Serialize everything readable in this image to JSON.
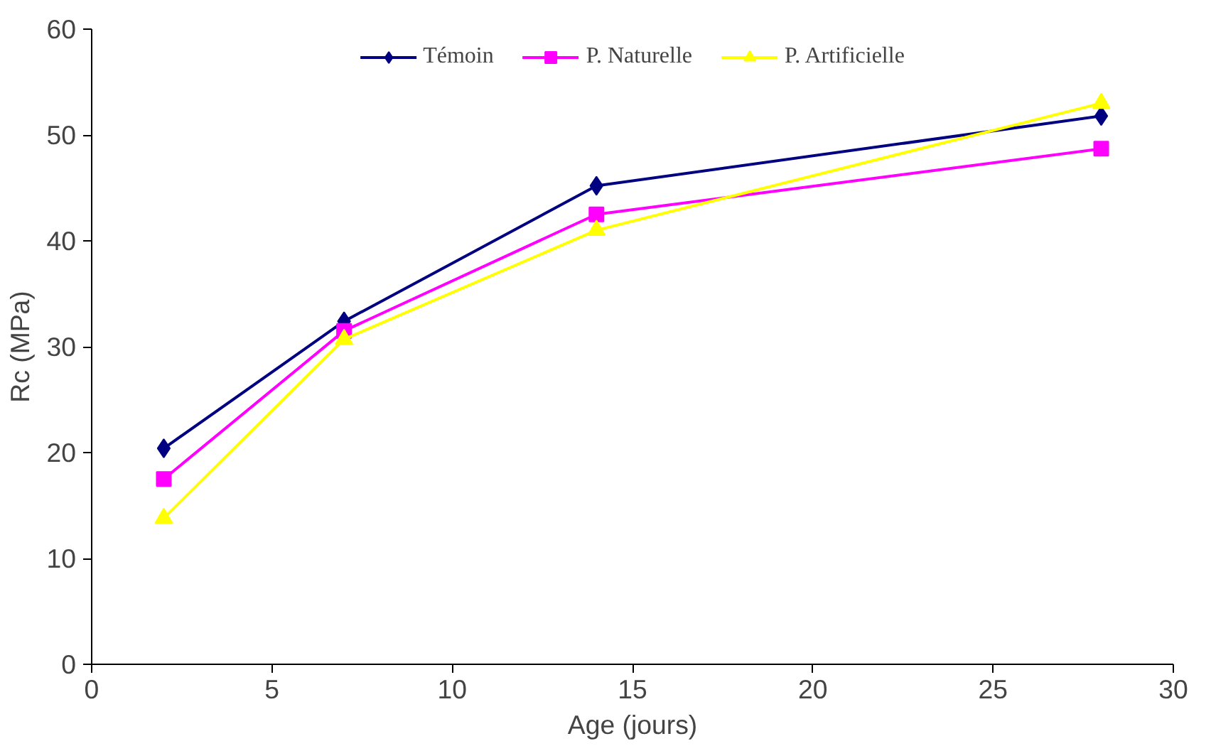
{
  "chart_data": {
    "type": "line",
    "xlabel": "Age (jours)",
    "ylabel": "Rc (MPa)",
    "x": [
      2,
      7,
      14,
      28
    ],
    "series": [
      {
        "name": "Témoin",
        "color": "#000080",
        "marker": "diamond",
        "values": [
          20.4,
          32.4,
          45.2,
          51.8
        ]
      },
      {
        "name": "P. Naturelle",
        "color": "#ff00ff",
        "marker": "square",
        "values": [
          17.5,
          31.5,
          42.5,
          48.7
        ]
      },
      {
        "name": "P. Artificielle",
        "color": "#ffff00",
        "marker": "triangle",
        "values": [
          13.8,
          30.7,
          41.0,
          53.0
        ]
      }
    ],
    "xlim": [
      0,
      30
    ],
    "xticks": [
      0,
      5,
      10,
      15,
      20,
      25,
      30
    ],
    "ylim": [
      0,
      60
    ],
    "yticks": [
      0,
      10,
      20,
      30,
      40,
      50,
      60
    ],
    "grid": false,
    "legend": "top",
    "line_style": "solid"
  }
}
